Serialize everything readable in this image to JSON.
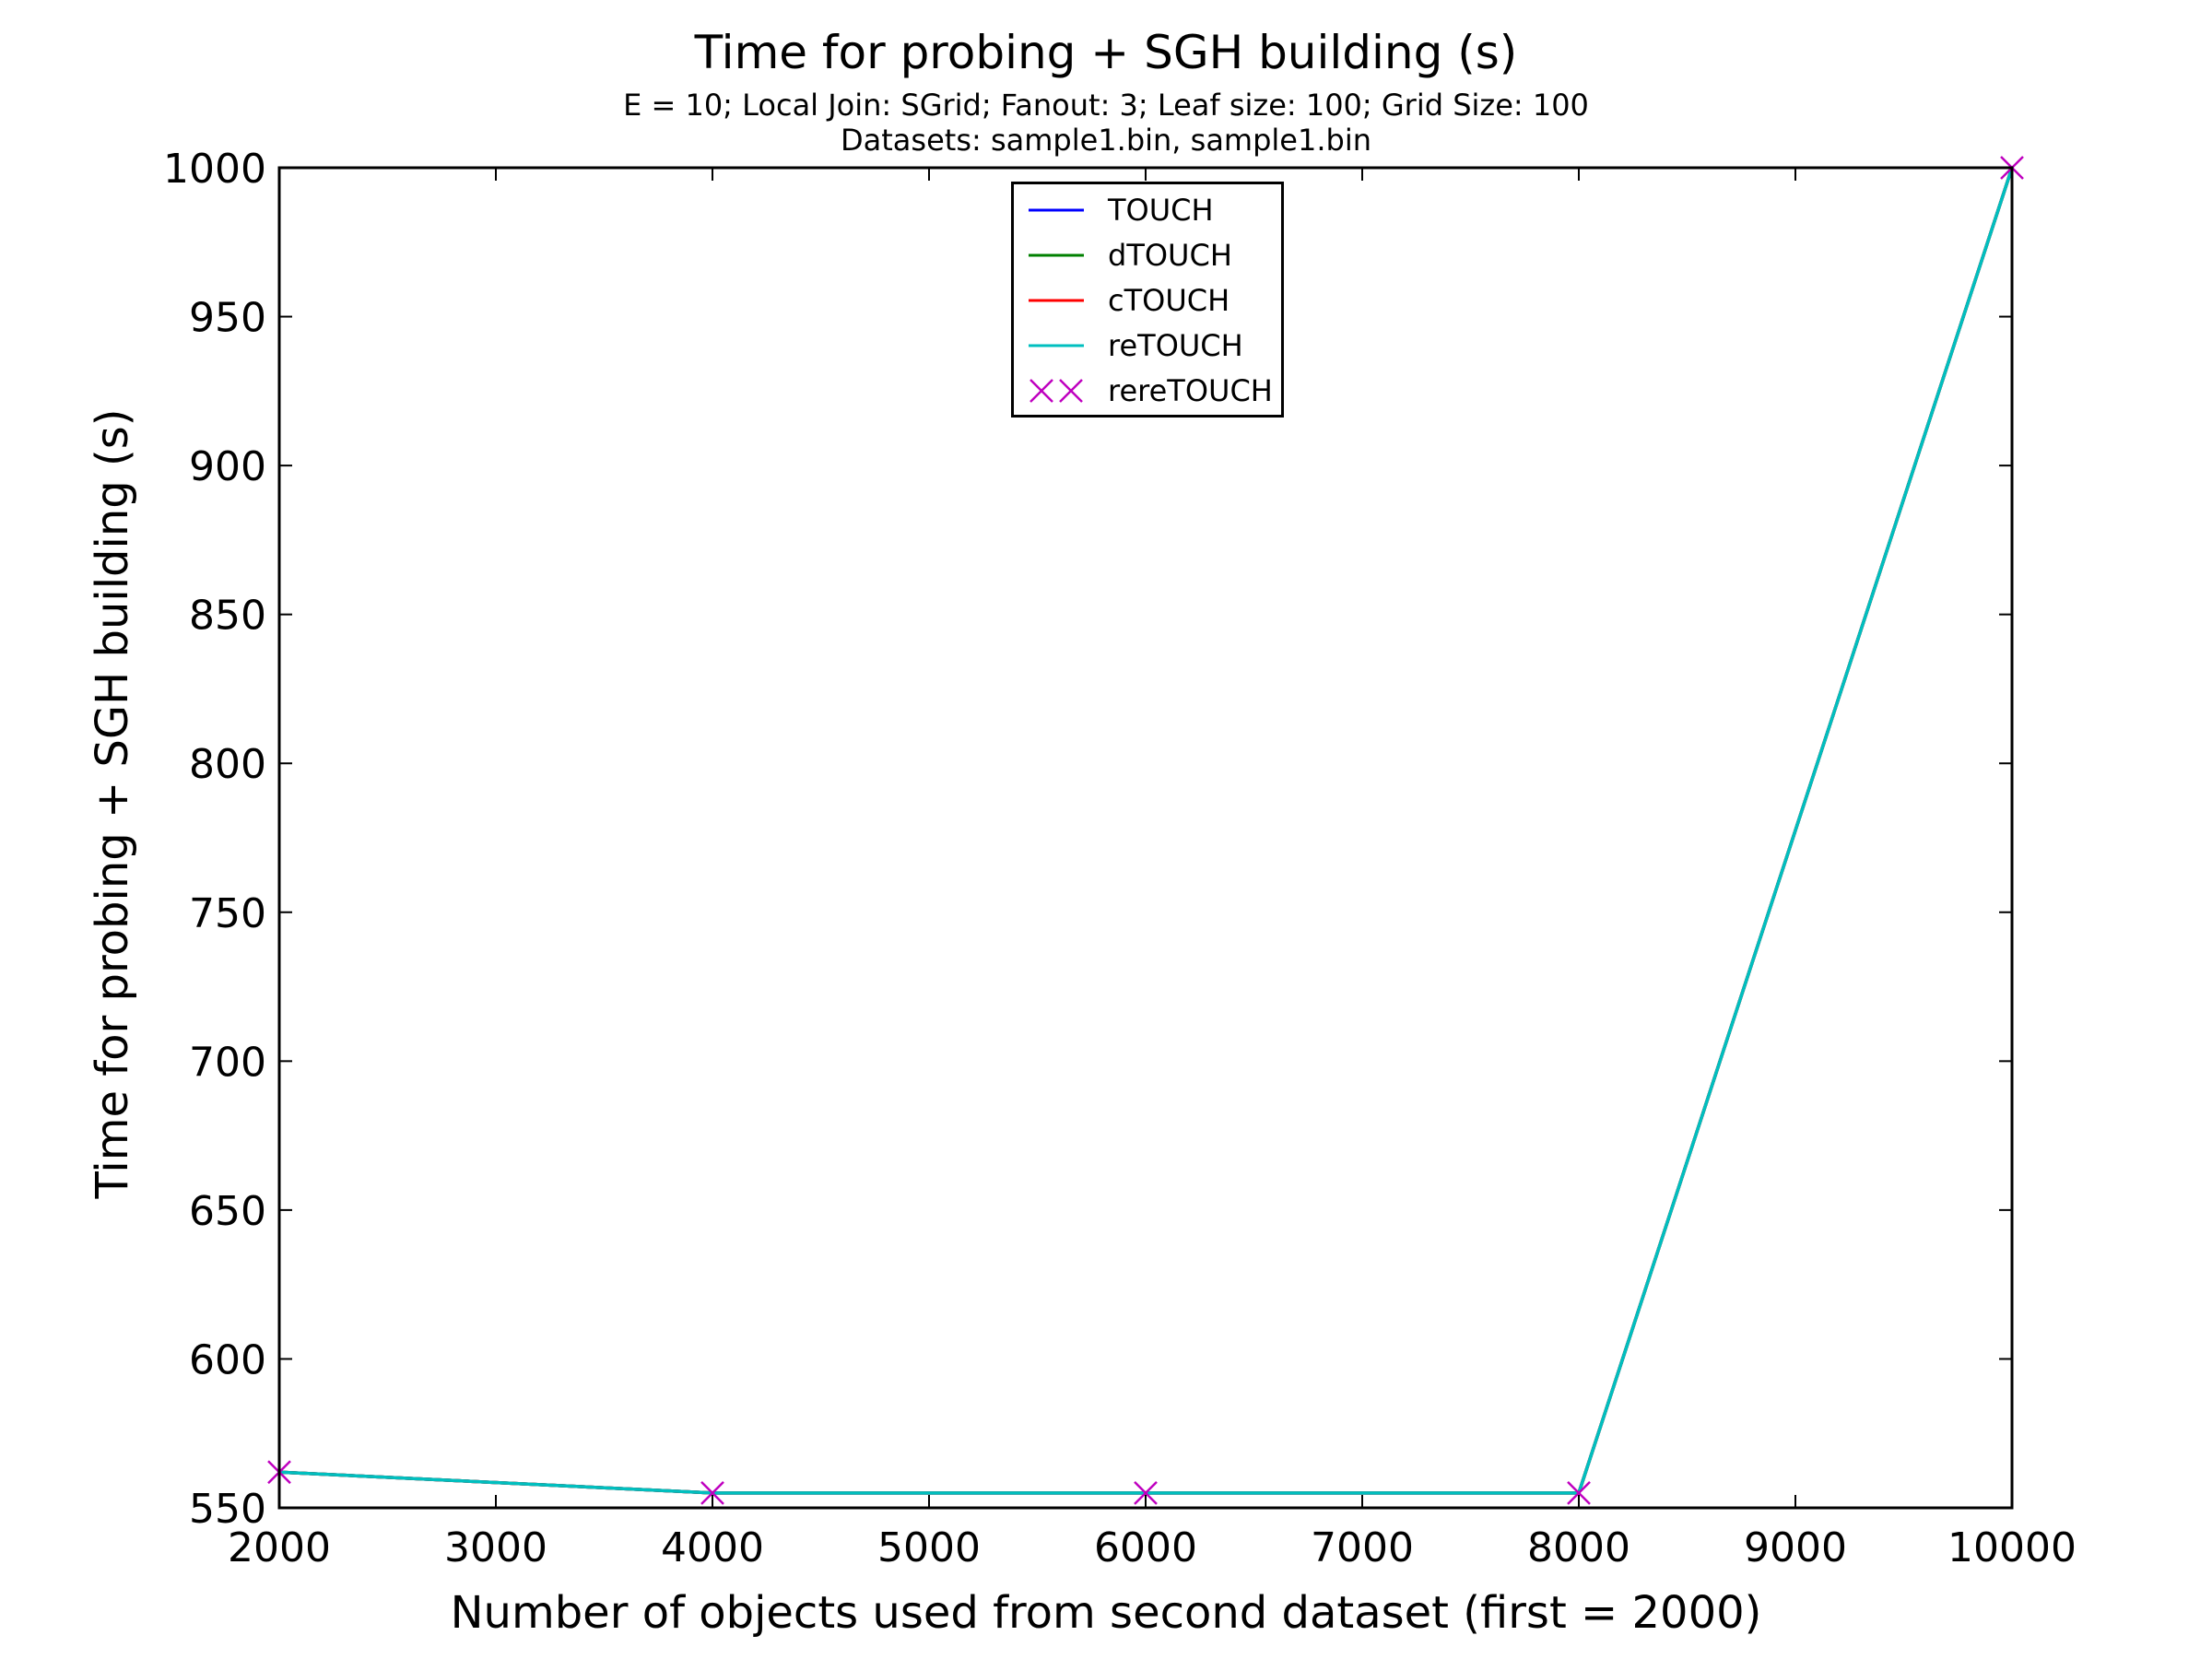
{
  "chart_data": {
    "type": "line",
    "title": "Time for probing + SGH building (s)",
    "subtitle_lines": [
      "E = 10; Local Join: SGrid; Fanout: 3; Leaf size: 100; Grid Size: 100",
      "Datasets: sample1.bin, sample1.bin"
    ],
    "xlabel": "Number of objects used from second dataset (first = 2000)",
    "ylabel": "Time for probing + SGH building (s)",
    "xlim": [
      2000,
      10000
    ],
    "ylim": [
      550,
      1000
    ],
    "x_ticks": [
      2000,
      3000,
      4000,
      5000,
      6000,
      7000,
      8000,
      9000,
      10000
    ],
    "y_ticks": [
      550,
      600,
      650,
      700,
      750,
      800,
      850,
      900,
      950,
      1000
    ],
    "grid": false,
    "legend_position": "top-center",
    "x": [
      2000,
      4000,
      6000,
      8000,
      10000
    ],
    "series": [
      {
        "name": "TOUCH",
        "color": "#0000ff",
        "style": "line",
        "values": [
          562,
          555,
          555,
          555,
          1000
        ]
      },
      {
        "name": "dTOUCH",
        "color": "#008000",
        "style": "line",
        "values": [
          562,
          555,
          555,
          555,
          1000
        ]
      },
      {
        "name": "cTOUCH",
        "color": "#ff0000",
        "style": "line",
        "values": [
          562,
          555,
          555,
          555,
          1000
        ]
      },
      {
        "name": "reTOUCH",
        "color": "#00bfbf",
        "style": "line",
        "values": [
          562,
          555,
          555,
          555,
          1000
        ]
      },
      {
        "name": "rereTOUCH",
        "color": "#bf00bf",
        "style": "x-marker",
        "values": [
          562,
          555,
          555,
          555,
          1000
        ]
      }
    ]
  }
}
